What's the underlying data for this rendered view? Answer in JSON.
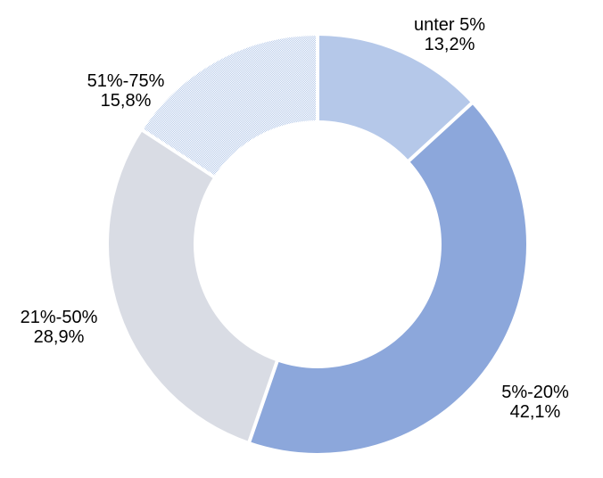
{
  "chart_data": {
    "type": "pie",
    "variant": "donut",
    "direction": "clockwise",
    "start_angle_deg": 0,
    "inner_radius_ratio": 0.594,
    "background": "#FFFFFF",
    "gap_color": "#FFFFFF",
    "legend": "none",
    "labels_position": "outside",
    "value_unit": "%",
    "slices": [
      {
        "label": "unter 5%",
        "value": 13.2,
        "value_display": "13,2%",
        "color": "#B5C8E9",
        "pattern": "solid"
      },
      {
        "label": "5%-20%",
        "value": 42.1,
        "value_display": "42,1%",
        "color": "#8CA7DB",
        "pattern": "solid"
      },
      {
        "label": "21%-50%",
        "value": 28.9,
        "value_display": "28,9%",
        "color": "#D9DCE4",
        "pattern": "solid"
      },
      {
        "label": "51%-75%",
        "value": 15.8,
        "value_display": "15,8%",
        "color": "#B9CCEA",
        "pattern": "checker-dither"
      }
    ]
  }
}
